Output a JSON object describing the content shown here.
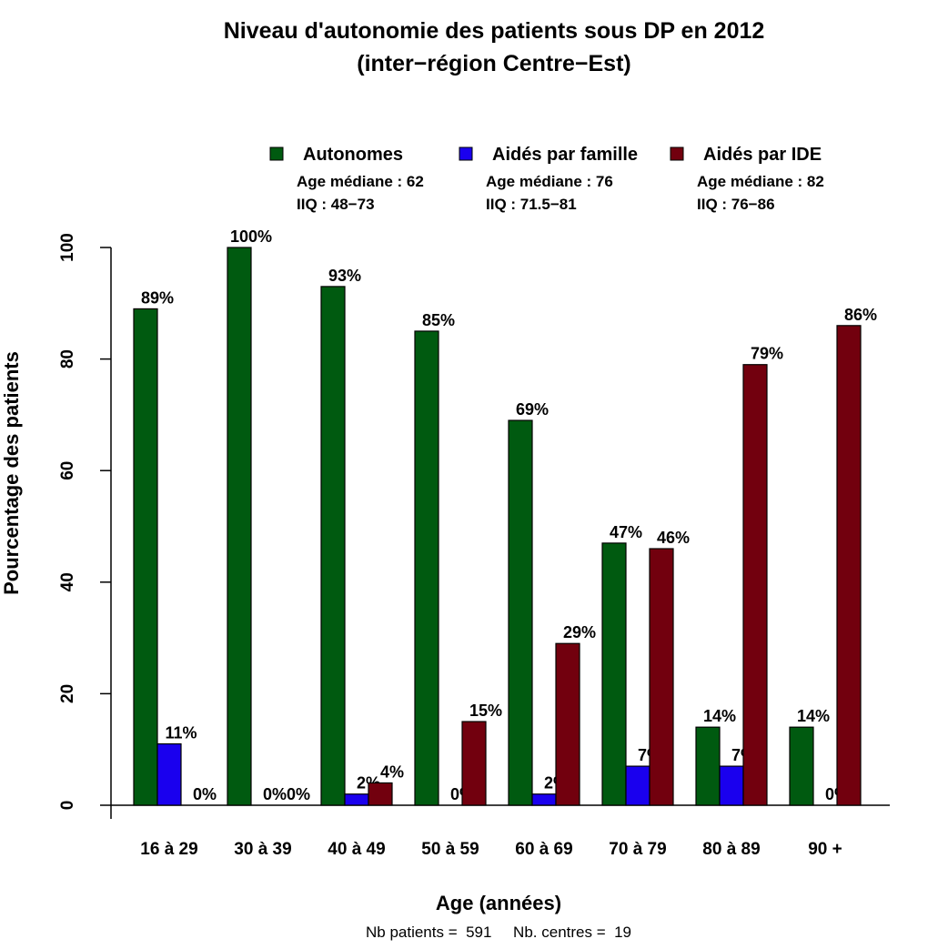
{
  "chart_data": {
    "type": "bar",
    "title": "Niveau d'autonomie des patients sous DP en 2012",
    "subtitle": "(inter−région Centre−Est)",
    "xlabel": "Age (années)",
    "ylabel": "Pourcentage des patients",
    "ylim": [
      0,
      100
    ],
    "yticks": [
      "0",
      "20",
      "40",
      "60",
      "80",
      "100"
    ],
    "categories": [
      "16 à 29",
      "30 à 39",
      "40 à 49",
      "50 à 59",
      "60 à 69",
      "70 à 79",
      "80 à 89",
      "90 +"
    ],
    "series": [
      {
        "name": "Autonomes",
        "color": "#005a10",
        "values": [
          89,
          100,
          93,
          85,
          69,
          47,
          14,
          14
        ],
        "labels": [
          "89%",
          "100%",
          "93%",
          "85%",
          "69%",
          "47%",
          "14%",
          "14%"
        ],
        "legend_line1": "Age médiane : 62",
        "legend_line2": "IIQ : 48−73"
      },
      {
        "name": "Aidés par famille",
        "color": "#1a00ee",
        "values": [
          11,
          0,
          2,
          0,
          2,
          7,
          7,
          0
        ],
        "labels": [
          "11%",
          "0%",
          "2%",
          "0%",
          "2%",
          "7%",
          "7%",
          "0%"
        ],
        "legend_line1": "Age médiane : 76",
        "legend_line2": "IIQ : 71.5−81"
      },
      {
        "name": "Aidés par IDE",
        "color": "#72000e",
        "values": [
          0,
          0,
          4,
          15,
          29,
          46,
          79,
          86
        ],
        "labels": [
          "0%",
          "0%",
          "4%",
          "15%",
          "29%",
          "46%",
          "79%",
          "86%"
        ],
        "legend_line1": "Age médiane : 82",
        "legend_line2": "IIQ : 76−86"
      }
    ],
    "legend_placement": "top",
    "footer": "Nb patients =  591     Nb. centres =  19",
    "grid": false
  }
}
